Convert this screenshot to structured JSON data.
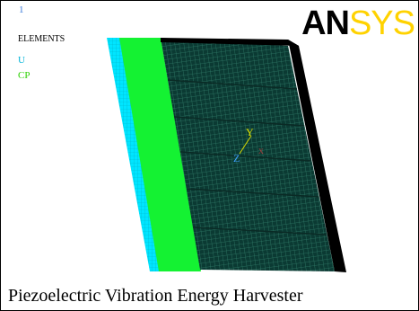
{
  "window": {
    "number": "1",
    "plot_type": "ELEMENTS",
    "symbols": [
      "U",
      "CP"
    ],
    "brand_logo": {
      "part1": "AN",
      "part2": "SYS"
    },
    "axis_labels": {
      "y": "Y",
      "z": "Z",
      "x": "X"
    },
    "caption": "Piezoelectric Vibration Energy Harvester"
  },
  "colors": {
    "background": "#ffffff",
    "layer_cyan": "#00e5ff",
    "layer_green": "#14f232",
    "mesh_dark": "#0b3a33",
    "mesh_line": "#2f7a66",
    "edge_black": "#000000",
    "logo_yellow": "#ffd200"
  }
}
